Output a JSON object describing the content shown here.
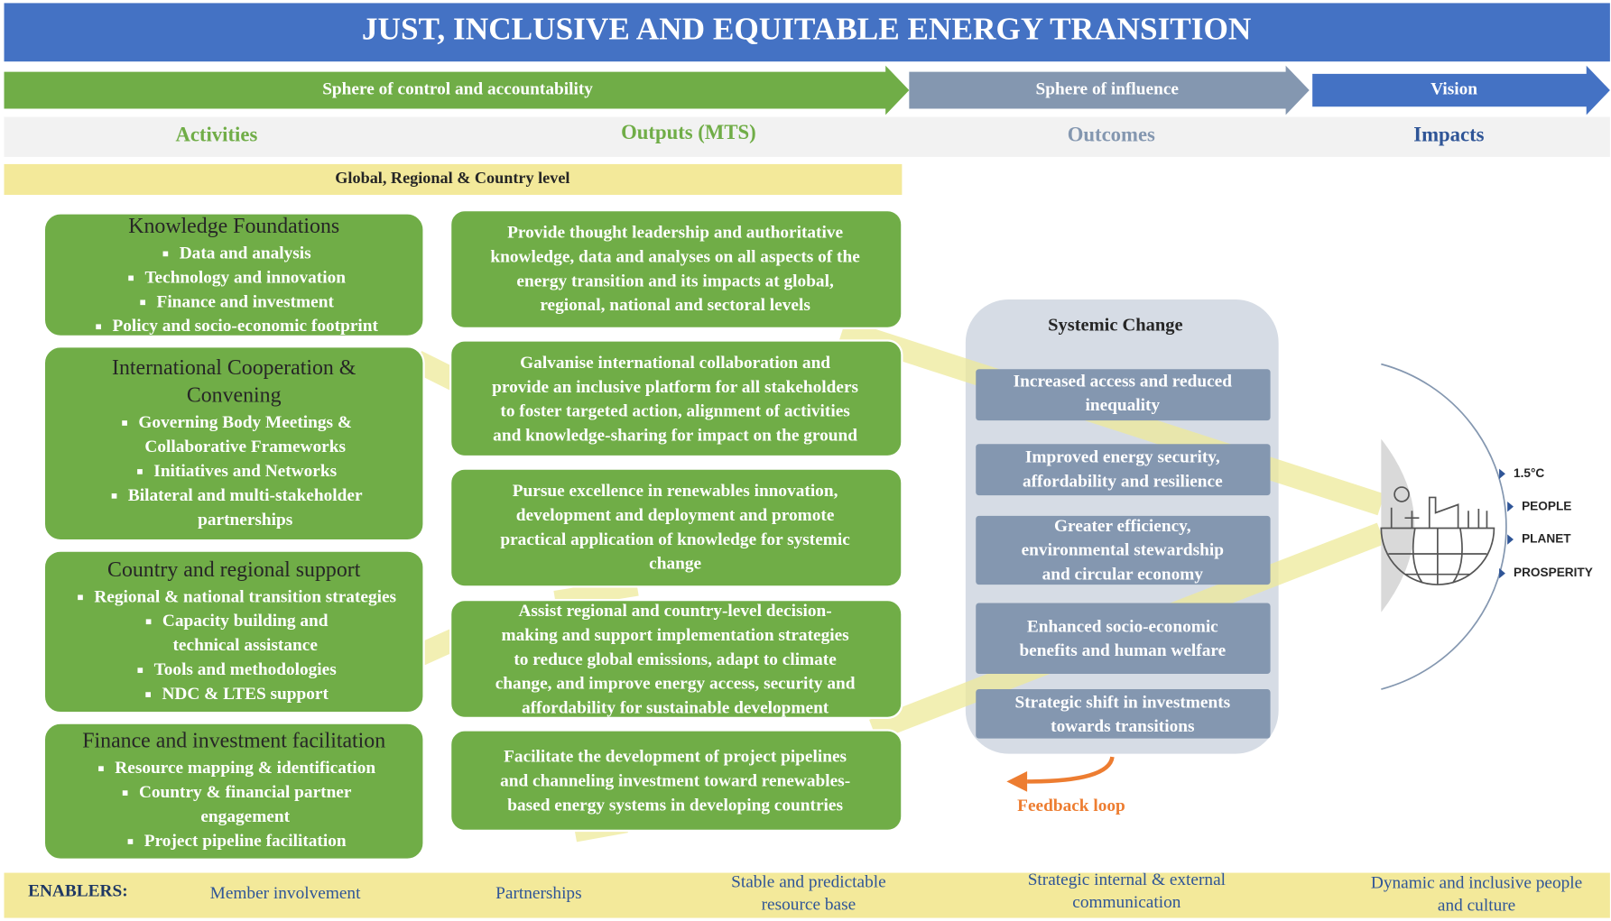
{
  "title": "JUST, INCLUSIVE AND EQUITABLE ENERGY TRANSITION",
  "arrows": [
    "Sphere of control and accountability",
    "Sphere of influence",
    "Vision"
  ],
  "columns": [
    "Activities",
    "Outputs (MTS)",
    "Outcomes",
    "Impacts"
  ],
  "level_banner": "Global, Regional & Country level",
  "activities": [
    {
      "title": [
        "Knowledge Foundations"
      ],
      "items": [
        [
          "Data and analysis"
        ],
        [
          "Technology and innovation"
        ],
        [
          "Finance and investment"
        ],
        [
          "Policy and socio-economic footprint"
        ]
      ]
    },
    {
      "title": [
        "International Cooperation &",
        "Convening"
      ],
      "items": [
        [
          "Governing Body Meetings &",
          "Collaborative Frameworks"
        ],
        [
          "Initiatives and Networks"
        ],
        [
          "Bilateral and multi-stakeholder",
          "partnerships"
        ]
      ]
    },
    {
      "title": [
        "Country and regional support"
      ],
      "items": [
        [
          "Regional & national transition strategies"
        ],
        [
          "Capacity building and",
          "technical assistance"
        ],
        [
          "Tools and methodologies"
        ],
        [
          "NDC & LTES support"
        ]
      ]
    },
    {
      "title": [
        "Finance and investment facilitation"
      ],
      "items": [
        [
          "Resource mapping & identification"
        ],
        [
          "Country & financial partner",
          "engagement"
        ],
        [
          "Project pipeline facilitation"
        ]
      ]
    }
  ],
  "outputs": [
    [
      "Provide thought leadership and authoritative",
      "knowledge, data and analyses on all aspects of the",
      "energy transition and its impacts at global,",
      "regional, national and sectoral levels"
    ],
    [
      "Galvanise international collaboration and",
      "provide an inclusive platform for all stakeholders",
      "to foster targeted action, alignment of activities",
      "and knowledge-sharing for impact on the ground"
    ],
    [
      "Pursue excellence in renewables innovation,",
      "development and deployment and promote",
      "practical application of knowledge for systemic",
      "change"
    ],
    [
      "Assist regional and country-level decision-",
      "making and support implementation strategies",
      "to reduce global emissions, adapt to climate",
      "change, and improve energy access, security and",
      "affordability for sustainable development"
    ],
    [
      "Facilitate the development of project pipelines",
      "and channeling investment toward renewables-",
      "based energy systems in developing countries"
    ]
  ],
  "systemic_change": {
    "title": "Systemic Change",
    "items": [
      [
        "Increased access and reduced",
        "inequality"
      ],
      [
        "Improved energy security,",
        "affordability and resilience"
      ],
      [
        "Greater efficiency,",
        "environmental stewardship",
        "and circular economy"
      ],
      [
        "Enhanced socio-economic",
        "benefits and human welfare"
      ],
      [
        "Strategic shift in investments",
        "towards transitions"
      ]
    ]
  },
  "feedback": "Feedback loop",
  "impacts": [
    "1.5°C",
    "PEOPLE",
    "PLANET",
    "PROSPERITY"
  ],
  "enablers": {
    "label": "ENABLERS:",
    "items": [
      [
        "Member involvement"
      ],
      [
        "Partnerships"
      ],
      [
        "Stable and predictable",
        "resource base"
      ],
      [
        "Strategic internal & external",
        "communication"
      ],
      [
        "Dynamic and inclusive people",
        "and culture"
      ]
    ]
  }
}
